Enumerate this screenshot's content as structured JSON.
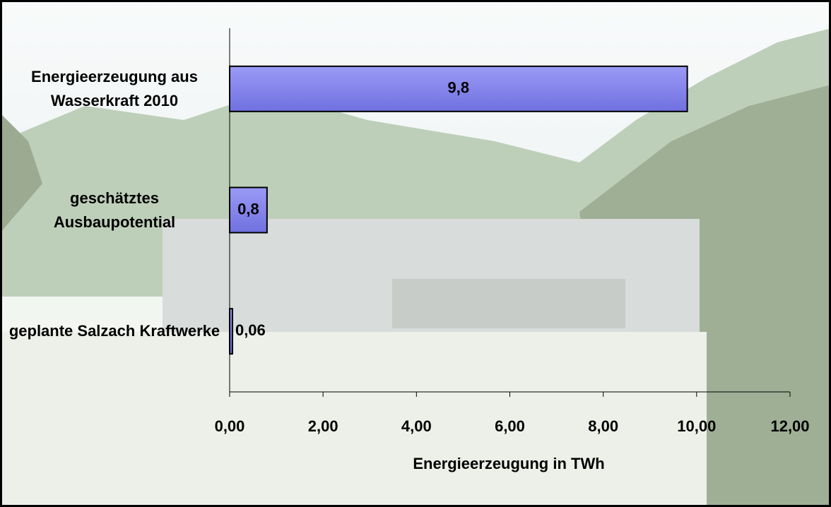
{
  "chart_data": {
    "type": "bar",
    "orientation": "horizontal",
    "categories": [
      "Energieerzeugung aus Wasserkraft 2010",
      "geschätztes Ausbaupotential",
      "geplante Salzach Kraftwerke"
    ],
    "values": [
      9.8,
      0.8,
      0.06
    ],
    "value_labels": [
      "9,8",
      "0,8",
      "0,06"
    ],
    "color": "#8080ee",
    "xlabel": "Energieerzeugung in TWh",
    "xlim": [
      0,
      12
    ],
    "xticks": [
      {
        "value": 0,
        "label": "0,00"
      },
      {
        "value": 2,
        "label": "2,00"
      },
      {
        "value": 4,
        "label": "4,00"
      },
      {
        "value": 6,
        "label": "6,00"
      },
      {
        "value": 8,
        "label": "8,00"
      },
      {
        "value": 10,
        "label": "10,00"
      },
      {
        "value": 12,
        "label": "12,00"
      }
    ],
    "grid": false
  }
}
